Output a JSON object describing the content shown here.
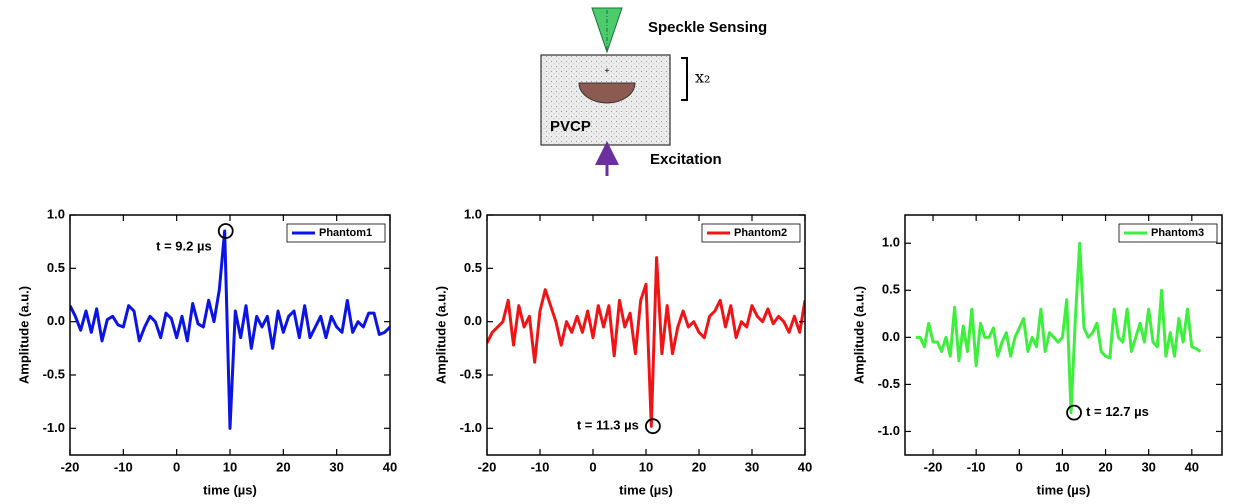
{
  "diagram": {
    "sensing": "Speckle Sensing",
    "depth": "x₂",
    "material": "PVCP",
    "excitation": "Excitation"
  },
  "chart_data": [
    {
      "type": "line",
      "xlabel": "time (µs)",
      "ylabel": "Amplitude (a.u.)",
      "legend": "upper right",
      "xlim": [
        -20,
        40
      ],
      "xticks": [
        -20,
        -10,
        0,
        10,
        20,
        30,
        40
      ],
      "ylim": [
        -1.25,
        1.0
      ],
      "yticks": [
        {
          "value": -1,
          "label": "-1.0"
        },
        -0.5,
        {
          "value": 0,
          "label": "0.0"
        },
        0.5,
        {
          "value": 1,
          "label": "1.0"
        }
      ],
      "annotation": {
        "text": "t = 9.2 µs",
        "x": 9.2,
        "y": 0.85
      },
      "x": [
        -20,
        -19,
        -18,
        -17,
        -16,
        -15,
        -14,
        -13,
        -12,
        -11,
        -10,
        -9,
        -8,
        -7,
        -6,
        -5,
        -4,
        -3,
        -2,
        -1,
        0,
        1,
        2,
        3,
        4,
        5,
        6,
        7,
        8,
        9,
        10,
        11,
        12,
        13,
        14,
        15,
        16,
        17,
        18,
        19,
        20,
        21,
        22,
        23,
        24,
        25,
        26,
        27,
        28,
        29,
        30,
        31,
        32,
        33,
        34,
        35,
        36,
        37,
        38,
        39,
        40
      ],
      "series": [
        {
          "name": "Phantom1",
          "color": "#0a14e6",
          "values": [
            0.15,
            0.05,
            -0.08,
            0.1,
            -0.1,
            0.12,
            -0.18,
            0.02,
            0.05,
            -0.03,
            -0.05,
            0.15,
            0.1,
            -0.18,
            -0.05,
            0.05,
            0.0,
            -0.15,
            0.08,
            0.03,
            -0.15,
            0.05,
            -0.18,
            0.17,
            -0.02,
            -0.05,
            0.2,
            0.0,
            0.3,
            0.85,
            -1.0,
            0.1,
            -0.15,
            0.15,
            -0.25,
            0.05,
            -0.05,
            0.05,
            -0.25,
            0.1,
            -0.1,
            0.05,
            0.1,
            -0.15,
            0.15,
            -0.15,
            -0.05,
            0.05,
            -0.15,
            0.05,
            -0.05,
            -0.1,
            0.2,
            -0.1,
            0.0,
            -0.05,
            0.08,
            0.08,
            -0.12,
            -0.1,
            -0.05
          ]
        }
      ]
    },
    {
      "type": "line",
      "xlabel": "time (µs)",
      "ylabel": "Amplitude (a.u.)",
      "legend": "upper right",
      "xlim": [
        -20,
        40
      ],
      "xticks": [
        -20,
        -10,
        0,
        10,
        20,
        30,
        40
      ],
      "ylim": [
        -1.25,
        1.0
      ],
      "yticks": [
        {
          "value": -1,
          "label": "-1.0"
        },
        -0.5,
        {
          "value": 0,
          "label": "0.0"
        },
        0.5,
        {
          "value": 1,
          "label": "1.0"
        }
      ],
      "annotation": {
        "text": "t = 11.3 µs",
        "x": 11.3,
        "y": -0.98
      },
      "x": [
        -20,
        -19,
        -18,
        -17,
        -16,
        -15,
        -14,
        -13,
        -12,
        -11,
        -10,
        -9,
        -8,
        -7,
        -6,
        -5,
        -4,
        -3,
        -2,
        -1,
        0,
        1,
        2,
        3,
        4,
        5,
        6,
        7,
        8,
        9,
        10,
        11,
        12,
        13,
        14,
        15,
        16,
        17,
        18,
        19,
        20,
        21,
        22,
        23,
        24,
        25,
        26,
        27,
        28,
        29,
        30,
        31,
        32,
        33,
        34,
        35,
        36,
        37,
        38,
        39,
        40
      ],
      "series": [
        {
          "name": "Phantom2",
          "color": "#f01414",
          "values": [
            -0.2,
            -0.1,
            -0.05,
            0.0,
            0.2,
            -0.22,
            0.15,
            -0.05,
            0.05,
            -0.38,
            0.1,
            0.3,
            0.15,
            0.0,
            -0.22,
            0.0,
            -0.1,
            0.05,
            -0.1,
            0.1,
            -0.15,
            0.15,
            -0.05,
            0.15,
            -0.32,
            0.2,
            -0.05,
            0.08,
            -0.3,
            0.2,
            0.35,
            -0.98,
            0.6,
            -0.3,
            0.15,
            -0.3,
            -0.05,
            0.1,
            -0.05,
            0.0,
            -0.1,
            -0.15,
            0.05,
            0.1,
            0.2,
            -0.05,
            0.15,
            -0.15,
            0.0,
            -0.05,
            0.15,
            0.05,
            0.0,
            0.12,
            -0.02,
            0.05,
            0.0,
            -0.1,
            0.05,
            -0.1,
            0.2
          ]
        }
      ]
    },
    {
      "type": "line",
      "xlabel": "time (µs)",
      "ylabel": "Amplitude (a.u.)",
      "legend": "upper right",
      "xlim": [
        -26.5,
        47
      ],
      "xticks": [
        -20,
        -10,
        0,
        10,
        20,
        30,
        40
      ],
      "ylim": [
        -1.25,
        1.3
      ],
      "yticks": [
        {
          "value": -1,
          "label": "-1.0"
        },
        -0.5,
        {
          "value": 0,
          "label": "0.0"
        },
        0.5,
        {
          "value": 1,
          "label": "1.0"
        }
      ],
      "annotation": {
        "text": "t = 12.7 µs",
        "x": 12.7,
        "y": -0.8
      },
      "x": [
        -24,
        -23,
        -22,
        -21,
        -20,
        -19,
        -18,
        -17,
        -16,
        -15,
        -14,
        -13,
        -12,
        -11,
        -10,
        -9,
        -8,
        -7,
        -6,
        -5,
        -4,
        -3,
        -2,
        -1,
        0,
        1,
        2,
        3,
        4,
        5,
        6,
        7,
        8,
        9,
        10,
        11,
        12,
        13,
        14,
        15,
        16,
        17,
        18,
        19,
        20,
        21,
        22,
        23,
        24,
        25,
        26,
        27,
        28,
        29,
        30,
        31,
        32,
        33,
        34,
        35,
        36,
        37,
        38,
        39,
        40,
        41,
        42
      ],
      "series": [
        {
          "name": "Phantom3",
          "color": "#3cf03c",
          "values": [
            0.0,
            0.0,
            -0.1,
            0.15,
            -0.05,
            -0.05,
            -0.15,
            0.0,
            -0.2,
            0.32,
            -0.25,
            0.12,
            -0.15,
            0.3,
            -0.3,
            0.15,
            0.0,
            0.0,
            0.1,
            -0.2,
            -0.05,
            0.05,
            -0.2,
            0.0,
            0.1,
            0.2,
            -0.15,
            0.0,
            -0.1,
            0.3,
            -0.15,
            0.05,
            0.0,
            -0.05,
            0.0,
            0.4,
            -0.8,
            0.2,
            1.0,
            0.1,
            0.0,
            0.05,
            0.15,
            -0.15,
            -0.2,
            -0.22,
            0.3,
            0.0,
            -0.05,
            0.3,
            -0.15,
            0.0,
            0.15,
            -0.05,
            0.3,
            -0.05,
            -0.1,
            0.5,
            -0.2,
            0.05,
            -0.2,
            0.2,
            -0.05,
            0.3,
            -0.1,
            -0.12,
            -0.15
          ]
        }
      ]
    }
  ]
}
